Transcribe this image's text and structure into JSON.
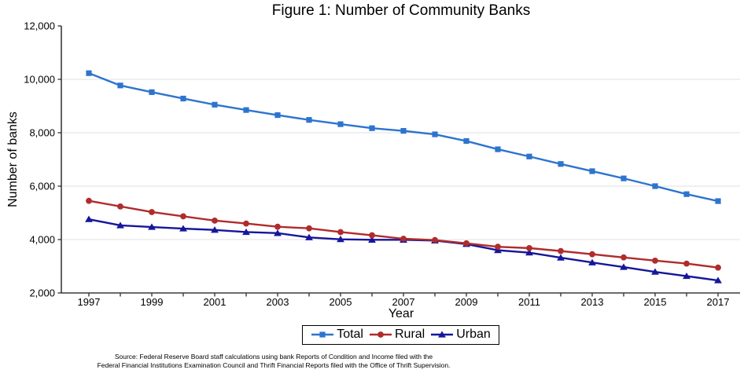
{
  "title": "Figure 1: Number of Community Banks",
  "y_axis": {
    "label": "Number of banks",
    "tick_values": [
      2000,
      4000,
      6000,
      8000,
      10000,
      12000
    ],
    "tick_labels": [
      "2,000",
      "4,000",
      "6,000",
      "8,000",
      "10,000",
      "12,000"
    ],
    "gridline_values": [
      4000,
      6000,
      8000,
      10000
    ]
  },
  "x_axis": {
    "label": "Year",
    "labeled_years": [
      1997,
      1999,
      2001,
      2003,
      2005,
      2007,
      2009,
      2011,
      2013,
      2015,
      2017
    ]
  },
  "legend": {
    "items": [
      {
        "label": "Total",
        "color": "#2D74CE",
        "marker": "square"
      },
      {
        "label": "Rural",
        "color": "#B02C2C",
        "marker": "circle"
      },
      {
        "label": "Urban",
        "color": "#16169B",
        "marker": "triangle"
      }
    ]
  },
  "footer": {
    "line1": "Source: Federal Reserve Board staff calculations using bank Reports of Condition and Income filed with the",
    "line2": "Federal Financial Institutions Examination Council and Thrift Financial Reports filed with the Office of Thrift Supervision."
  },
  "colors": {
    "total": "#2D74CE",
    "rural": "#B02C2C",
    "urban": "#16169B",
    "gridline": "#e8e8e8",
    "axis": "#3a3a3a"
  },
  "chart_data": {
    "type": "line",
    "title": "Figure 1: Number of Community Banks",
    "xlabel": "Year",
    "ylabel": "Number of banks",
    "xlim": [
      1997,
      2017
    ],
    "ylim": [
      2000,
      12000
    ],
    "grid": "horizontal",
    "legend_position": "bottom",
    "x": [
      1997,
      1998,
      1999,
      2000,
      2001,
      2002,
      2003,
      2004,
      2005,
      2006,
      2007,
      2008,
      2009,
      2010,
      2011,
      2012,
      2013,
      2014,
      2015,
      2016,
      2017
    ],
    "series": [
      {
        "name": "Total",
        "color": "#2D74CE",
        "marker": "square",
        "values": [
          10230,
          9770,
          9520,
          9280,
          9050,
          8850,
          8660,
          8480,
          8320,
          8170,
          8070,
          7940,
          7690,
          7380,
          7110,
          6830,
          6560,
          6290,
          6000,
          5700,
          5440
        ]
      },
      {
        "name": "Rural",
        "color": "#B02C2C",
        "marker": "circle",
        "values": [
          5450,
          5240,
          5030,
          4870,
          4710,
          4600,
          4480,
          4420,
          4280,
          4160,
          4030,
          3980,
          3860,
          3730,
          3680,
          3570,
          3450,
          3330,
          3210,
          3100,
          2950
        ]
      },
      {
        "name": "Urban",
        "color": "#16169B",
        "marker": "triangle",
        "values": [
          4760,
          4530,
          4470,
          4410,
          4360,
          4280,
          4240,
          4080,
          4010,
          3990,
          3990,
          3960,
          3830,
          3600,
          3510,
          3320,
          3140,
          2970,
          2790,
          2630,
          2470
        ]
      }
    ]
  }
}
